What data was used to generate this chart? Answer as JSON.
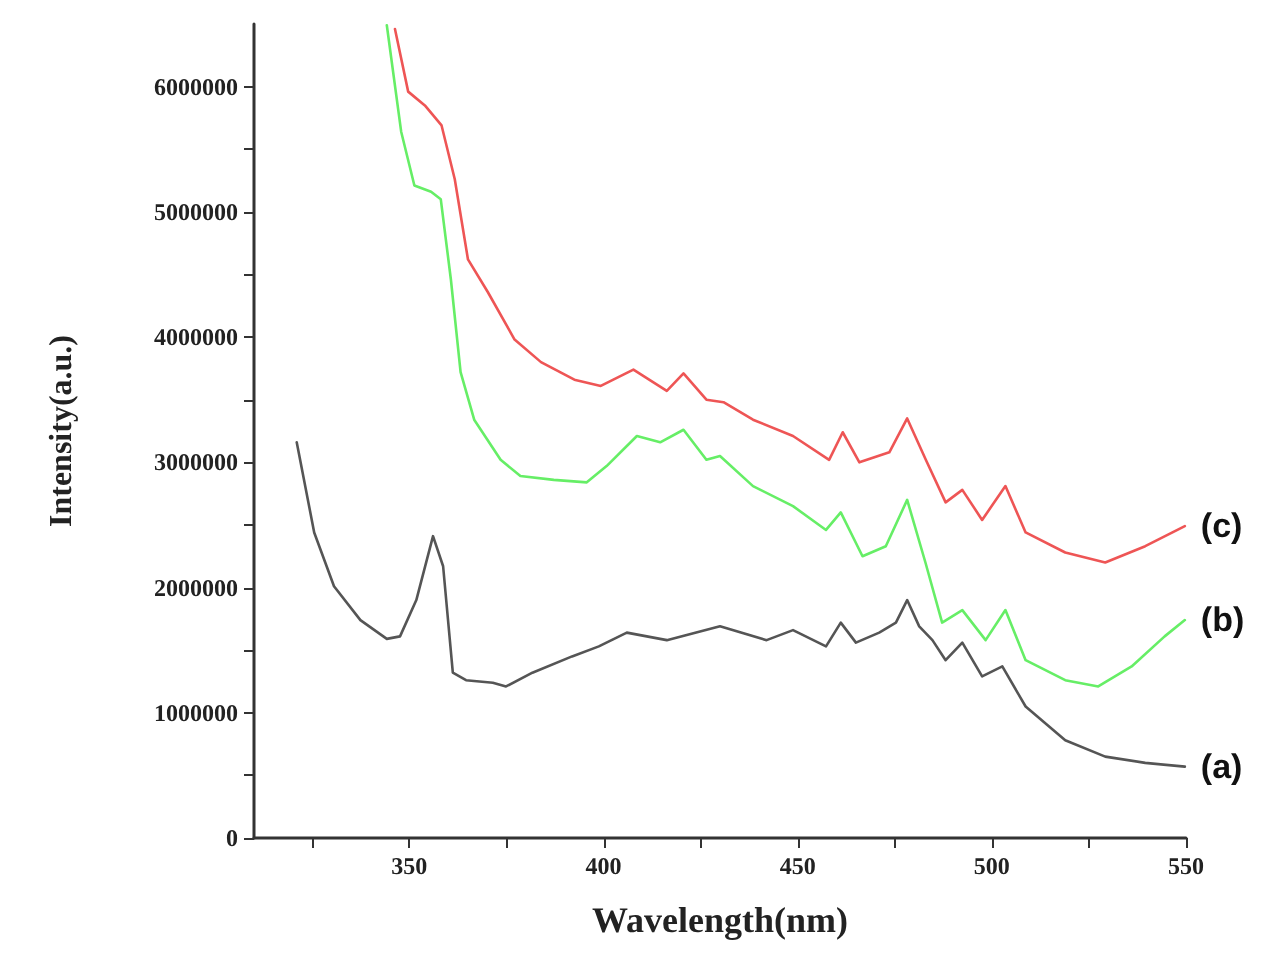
{
  "chart_data": {
    "type": "line",
    "xlabel": "Wavelength(nm)",
    "ylabel": "Intensity(a.u.)",
    "xlim": [
      310,
      550
    ],
    "ylim": [
      0,
      6500000
    ],
    "xticks": [
      {
        "value": 325,
        "label": null
      },
      350,
      {
        "value": 375,
        "label": null
      },
      400,
      {
        "value": 425,
        "label": null
      },
      450,
      {
        "value": 475,
        "label": null
      },
      500,
      {
        "value": 525,
        "label": null
      },
      550
    ],
    "yticks": [
      0,
      {
        "value": 500000,
        "label": null
      },
      1000000,
      {
        "value": 1500000,
        "label": null
      },
      2000000,
      {
        "value": 2500000,
        "label": null
      },
      3000000,
      {
        "value": 3500000,
        "label": null
      },
      4000000,
      {
        "value": 4500000,
        "label": null
      },
      5000000,
      {
        "value": 5500000,
        "label": null
      },
      6000000
    ],
    "grid": false,
    "legend": false,
    "marker": "none",
    "line_style": "solid",
    "series": [
      {
        "name": "(a)",
        "color": "#555555",
        "x": [
          321,
          325.5,
          330.6,
          337.4,
          344.2,
          347.6,
          351.8,
          356.1,
          358.7,
          361.2,
          364.6,
          371.5,
          374.9,
          381.7,
          391.9,
          398.8,
          406,
          416.3,
          430,
          442,
          448.8,
          457.3,
          461.1,
          465,
          471,
          475.3,
          478.2,
          481.3,
          484.7,
          488.1,
          492.4,
          497.5,
          502.7,
          508.7,
          518.9,
          529.2,
          539.5,
          549.7
        ],
        "values": [
          3160000,
          2440000,
          2010000,
          1740000,
          1590000,
          1610000,
          1900000,
          2410000,
          2170000,
          1320000,
          1260000,
          1240000,
          1210000,
          1320000,
          1450000,
          1530000,
          1640000,
          1580000,
          1690000,
          1580000,
          1660000,
          1530000,
          1720000,
          1560000,
          1640000,
          1720000,
          1900000,
          1690000,
          1580000,
          1420000,
          1560000,
          1290000,
          1370000,
          1050000,
          780000,
          650000,
          600000,
          570000
        ]
      },
      {
        "name": "(b)",
        "color": "#66ee66",
        "x": [
          344.2,
          347.9,
          351.3,
          355.6,
          358.1,
          360.7,
          363.2,
          366.7,
          373.5,
          378.6,
          387.2,
          395.7,
          400.8,
          408.6,
          414.6,
          420.6,
          426.5,
          430,
          438.5,
          448.8,
          457.3,
          461.1,
          466.7,
          472.7,
          478.2,
          482.9,
          487.2,
          492.4,
          498.4,
          503.5,
          508.7,
          518.9,
          527.4,
          536,
          544.5,
          549.7
        ],
        "values": [
          6490000,
          5640000,
          5210000,
          5160000,
          5100000,
          4460000,
          3720000,
          3340000,
          3020000,
          2890000,
          2860000,
          2840000,
          2970000,
          3210000,
          3160000,
          3260000,
          3020000,
          3050000,
          2810000,
          2650000,
          2460000,
          2600000,
          2250000,
          2330000,
          2700000,
          2200000,
          1720000,
          1820000,
          1580000,
          1820000,
          1420000,
          1260000,
          1210000,
          1370000,
          1610000,
          1740000
        ]
      },
      {
        "name": "(c)",
        "color": "#ee5555",
        "x": [
          346.3,
          349.7,
          354,
          358.3,
          361.7,
          365.1,
          370.2,
          377.1,
          383.9,
          392.5,
          399.3,
          407.7,
          416.3,
          420.6,
          426.5,
          430.9,
          438.5,
          448.8,
          458.1,
          461.6,
          465.9,
          473.6,
          478.2,
          483,
          488.1,
          492.4,
          497.5,
          503.5,
          508.7,
          518.9,
          529.2,
          539.5,
          549.7
        ],
        "values": [
          6460000,
          5960000,
          5850000,
          5690000,
          5260000,
          4620000,
          4360000,
          3980000,
          3800000,
          3660000,
          3610000,
          3740000,
          3570000,
          3710000,
          3500000,
          3480000,
          3340000,
          3210000,
          3020000,
          3240000,
          3000000,
          3080000,
          3350000,
          3020000,
          2680000,
          2780000,
          2540000,
          2810000,
          2440000,
          2280000,
          2200000,
          2330000,
          2490000
        ]
      }
    ]
  }
}
